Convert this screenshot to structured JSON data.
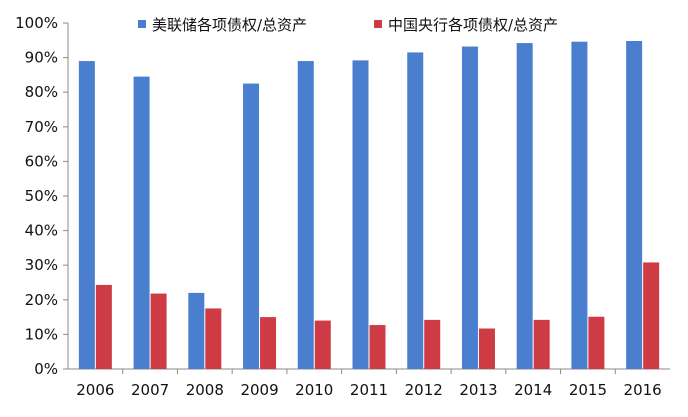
{
  "chart_data": {
    "type": "bar",
    "categories": [
      "2006",
      "2007",
      "2008",
      "2009",
      "2010",
      "2011",
      "2012",
      "2013",
      "2014",
      "2015",
      "2016"
    ],
    "series": [
      {
        "name": "美联储各项债权/总资产",
        "color": "#4a7fd0",
        "values": [
          89,
          84.5,
          22,
          82.5,
          89,
          89.2,
          91.5,
          93.2,
          94.2,
          94.6,
          94.8
        ]
      },
      {
        "name": "中国央行各项债权/总资产",
        "color": "#cf3b45",
        "values": [
          24.3,
          21.8,
          17.5,
          15,
          14,
          12.7,
          14.2,
          11.7,
          14.2,
          15.1,
          30.8
        ]
      }
    ],
    "y_ticks": [
      "0%",
      "10%",
      "20%",
      "30%",
      "40%",
      "50%",
      "60%",
      "70%",
      "80%",
      "90%",
      "100%"
    ],
    "ylim": [
      0,
      100
    ],
    "title": "",
    "xlabel": "",
    "ylabel": "",
    "grid": false,
    "legend_position": "top"
  }
}
